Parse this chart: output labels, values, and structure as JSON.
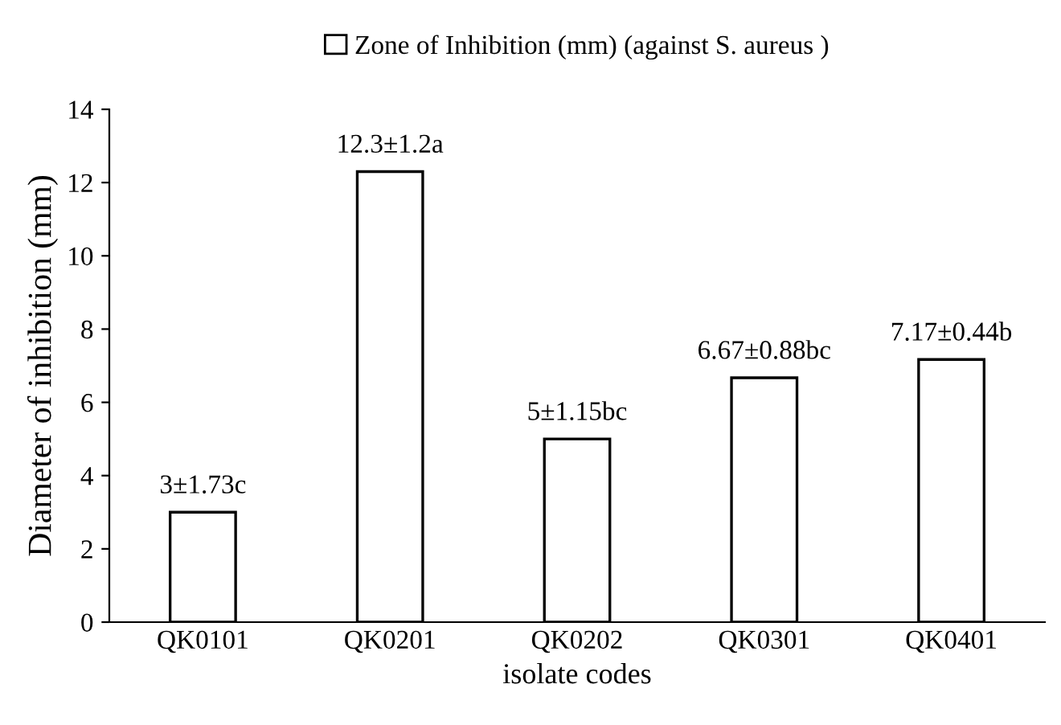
{
  "chart_data": {
    "type": "bar",
    "xlabel": "isolate codes",
    "ylabel": "Diameter of inhibition (mm)",
    "categories": [
      "QK0101",
      "QK0201",
      "QK0202",
      "QK0301",
      "QK0401"
    ],
    "series": [
      {
        "name": "Zone of Inhibition (mm) (against S. aureus )",
        "color": "#ffffff",
        "values": [
          3,
          12.3,
          5,
          6.67,
          7.17
        ],
        "value_labels": [
          "3±1.73c",
          "12.3±1.2a",
          "5±1.15bc",
          "6.67±0.88bc",
          "7.17±0.44b"
        ]
      }
    ],
    "ylim": [
      0,
      14
    ],
    "yticks": [
      0,
      2,
      4,
      6,
      8,
      10,
      12,
      14
    ],
    "grid": false,
    "legend": "top"
  }
}
